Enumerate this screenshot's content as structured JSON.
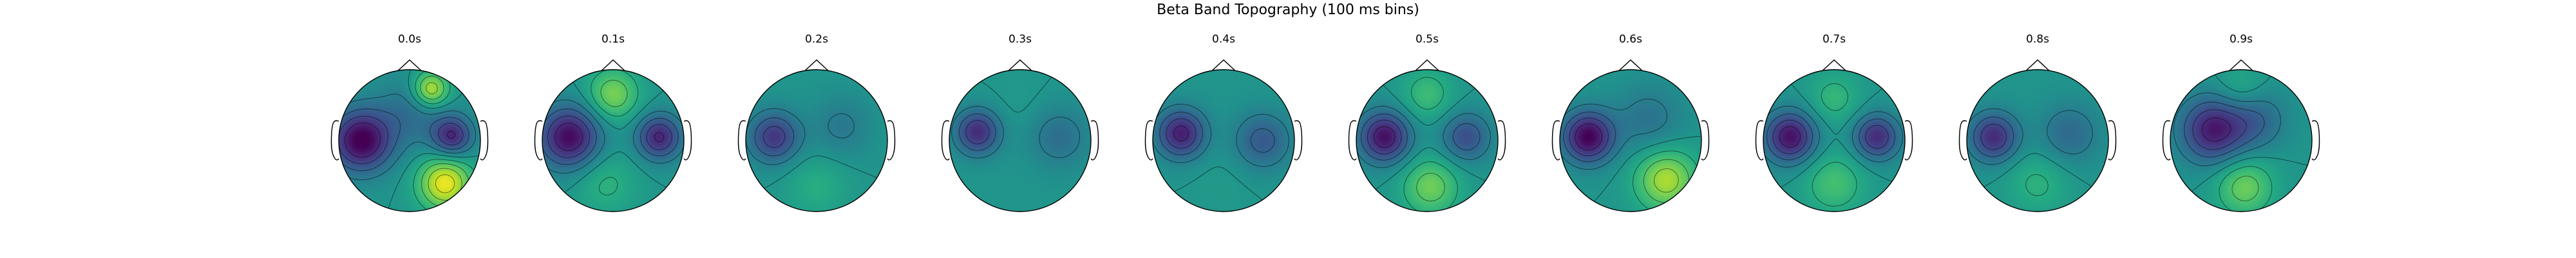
{
  "chart_data": {
    "type": "heatmap",
    "title": "Beta Band Topography (100 ms bins)",
    "colormap": "viridis",
    "panels": [
      {
        "label": "0.0s",
        "spots": [
          {
            "u": 0.5,
            "v": -0.6,
            "a": 1.15,
            "s": 0.26
          },
          {
            "u": 0.3,
            "v": 0.72,
            "a": 1.05,
            "s": 0.18
          },
          {
            "u": -0.68,
            "v": 0.0,
            "a": -1.35,
            "s": 0.3
          },
          {
            "u": 0.6,
            "v": 0.06,
            "a": -1.0,
            "s": 0.2
          },
          {
            "u": 0.05,
            "v": 0.4,
            "a": -0.4,
            "s": 0.35
          }
        ]
      },
      {
        "label": "0.1s",
        "spots": [
          {
            "u": 0.0,
            "v": 0.65,
            "a": 0.7,
            "s": 0.25
          },
          {
            "u": -0.62,
            "v": 0.05,
            "a": -1.25,
            "s": 0.3
          },
          {
            "u": 0.65,
            "v": 0.05,
            "a": -1.05,
            "s": 0.22
          },
          {
            "u": -0.1,
            "v": -0.6,
            "a": 0.3,
            "s": 0.3
          }
        ]
      },
      {
        "label": "0.2s",
        "spots": [
          {
            "u": -0.6,
            "v": 0.05,
            "a": -0.9,
            "s": 0.25
          },
          {
            "u": 0.35,
            "v": 0.2,
            "a": -0.3,
            "s": 0.3
          },
          {
            "u": 0.0,
            "v": -0.65,
            "a": 0.25,
            "s": 0.3
          }
        ]
      },
      {
        "label": "0.3s",
        "spots": [
          {
            "u": -0.6,
            "v": 0.12,
            "a": -1.0,
            "s": 0.22
          },
          {
            "u": 0.55,
            "v": 0.05,
            "a": -0.4,
            "s": 0.3
          },
          {
            "u": 0.0,
            "v": 0.5,
            "a": 0.05,
            "s": 0.3
          }
        ]
      },
      {
        "label": "0.4s",
        "spots": [
          {
            "u": -0.6,
            "v": 0.1,
            "a": -1.1,
            "s": 0.24
          },
          {
            "u": 0.55,
            "v": 0.0,
            "a": -0.6,
            "s": 0.28
          },
          {
            "u": 0.0,
            "v": -0.6,
            "a": 0.05,
            "s": 0.3
          }
        ]
      },
      {
        "label": "0.5s",
        "spots": [
          {
            "u": -0.6,
            "v": 0.05,
            "a": -1.2,
            "s": 0.25
          },
          {
            "u": 0.55,
            "v": 0.05,
            "a": -0.7,
            "s": 0.24
          },
          {
            "u": 0.05,
            "v": -0.65,
            "a": 0.65,
            "s": 0.28
          },
          {
            "u": 0.0,
            "v": 0.65,
            "a": 0.4,
            "s": 0.25
          }
        ]
      },
      {
        "label": "0.6s",
        "spots": [
          {
            "u": -0.6,
            "v": 0.05,
            "a": -1.3,
            "s": 0.25
          },
          {
            "u": 0.5,
            "v": -0.55,
            "a": 0.9,
            "s": 0.3
          },
          {
            "u": 0.25,
            "v": 0.3,
            "a": -0.35,
            "s": 0.35
          }
        ]
      },
      {
        "label": "0.7s",
        "spots": [
          {
            "u": -0.62,
            "v": 0.05,
            "a": -1.2,
            "s": 0.25
          },
          {
            "u": 0.6,
            "v": 0.05,
            "a": -1.0,
            "s": 0.22
          },
          {
            "u": 0.0,
            "v": -0.6,
            "a": 0.45,
            "s": 0.3
          },
          {
            "u": 0.0,
            "v": 0.6,
            "a": 0.35,
            "s": 0.25
          }
        ]
      },
      {
        "label": "0.8s",
        "spots": [
          {
            "u": -0.62,
            "v": 0.05,
            "a": -1.0,
            "s": 0.24
          },
          {
            "u": 0.45,
            "v": 0.1,
            "a": -0.45,
            "s": 0.3
          },
          {
            "u": 0.0,
            "v": -0.6,
            "a": 0.3,
            "s": 0.3
          }
        ]
      },
      {
        "label": "0.9s",
        "spots": [
          {
            "u": -0.4,
            "v": 0.15,
            "a": -1.1,
            "s": 0.32
          },
          {
            "u": 0.2,
            "v": 0.3,
            "a": -0.5,
            "s": 0.3
          },
          {
            "u": 0.05,
            "v": -0.65,
            "a": 0.65,
            "s": 0.28
          },
          {
            "u": 0.0,
            "v": 0.7,
            "a": 0.3,
            "s": 0.25
          }
        ]
      }
    ]
  }
}
